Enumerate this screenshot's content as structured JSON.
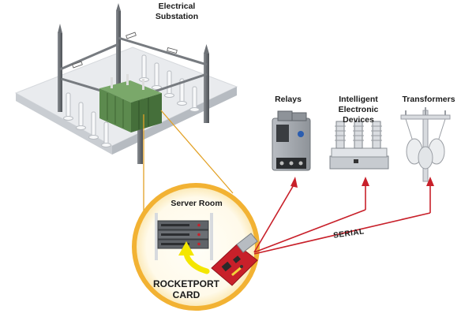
{
  "labels": {
    "substation": "Electrical\nSubstation",
    "relays": "Relays",
    "ied": "Intelligent\nElectronic\nDevices",
    "transformers": "Transformers",
    "server_room": "Server Room",
    "card": "ROCKETPORT\nCARD",
    "serial": "SERIAL"
  },
  "colors": {
    "platform_top": "#e9ebee",
    "platform_side": "#cdd1d6",
    "pole": "#6d7176",
    "transformer": "#5c8a4e",
    "ring": "#f2b233",
    "ring_fill": "#fffdf3",
    "serial_line": "#c8202a",
    "card_pcb": "#c8202a",
    "arrow": "#f4e600"
  }
}
